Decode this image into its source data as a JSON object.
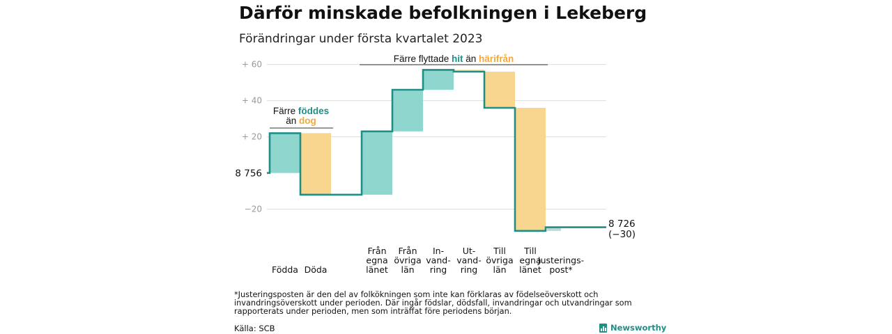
{
  "title": "Därför minskade befolkningen i Lekeberg",
  "subtitle": "Förändringar under första kvartalet 2023",
  "colors": {
    "increase": "#8fd6cf",
    "decrease": "#f8d690",
    "line": "#1f8f85",
    "grid": "#dddddd",
    "tick_text": "#999999",
    "adjustment": "#bcd9d6"
  },
  "chart_data": {
    "type": "waterfall",
    "start_value": 8756,
    "end_value": 8726,
    "start_label": "8 756",
    "end_label_line1": "8 726",
    "end_label_line2": "(−30)",
    "ylim": [
      -32,
      62
    ],
    "yticks": [
      {
        "value": 60,
        "label": "+ 60"
      },
      {
        "value": 40,
        "label": "+ 40"
      },
      {
        "value": 20,
        "label": "+ 20"
      },
      {
        "value": -20,
        "label": "−20"
      }
    ],
    "grid": true,
    "steps": [
      {
        "label": [
          "",
          "Födda"
        ],
        "value": 22,
        "kind": "increase"
      },
      {
        "label": [
          "",
          "Döda"
        ],
        "value": -34,
        "kind": "decrease"
      },
      {
        "label": null,
        "value": 0,
        "kind": "gap"
      },
      {
        "label": [
          "Från",
          "egna",
          "länet"
        ],
        "value": 35,
        "kind": "increase"
      },
      {
        "label": [
          "Från",
          "övriga",
          "län"
        ],
        "value": 23,
        "kind": "increase"
      },
      {
        "label": [
          "In-",
          "vand-",
          "ring"
        ],
        "value": 11,
        "kind": "increase"
      },
      {
        "label": [
          "Ut-",
          "vand-",
          "ring"
        ],
        "value": -1,
        "kind": "decrease"
      },
      {
        "label": [
          "Till",
          "övriga",
          "län"
        ],
        "value": -20,
        "kind": "decrease"
      },
      {
        "label": [
          "Till",
          "egna",
          "länet"
        ],
        "value": -68,
        "kind": "decrease"
      },
      {
        "label": [
          "Justerings-",
          "post*"
        ],
        "value": 2,
        "kind": "adjustment"
      }
    ],
    "annotations": {
      "births": {
        "l1": "Färre",
        "l1b": "föddes",
        "l2": "än",
        "l2b": "dog"
      },
      "migration": {
        "a": "Färre flyttade",
        "b": "hit",
        "c": "än",
        "d": "härifrån"
      }
    }
  },
  "footnote": "*Justeringsposten är den del av folkökningen som inte kan förklaras av födelseöverskott och invandringsöverskott under perioden. Där ingår födslar, dödsfall, invandringar och utvandringar som rapporterats under perioden, men som inträffat före periodens början.",
  "source": "Källa: SCB",
  "brand": "Newsworthy"
}
